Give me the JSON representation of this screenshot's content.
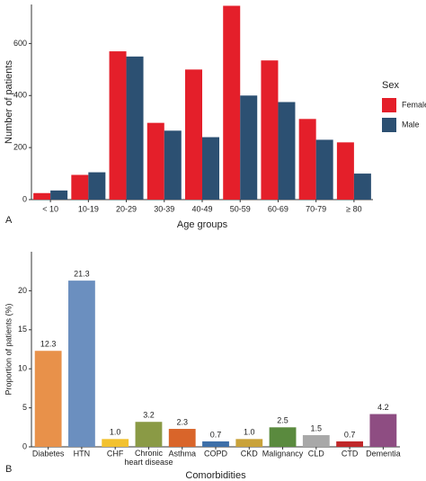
{
  "chart_data": [
    {
      "type": "grouped-bar",
      "panel_label": "A",
      "y_label": "Number of patients",
      "x_label": "Age groups",
      "categories": [
        "< 10",
        "10-19",
        "20-29",
        "30-39",
        "40-49",
        "50-59",
        "60-69",
        "70-79",
        "≥ 80"
      ],
      "series": [
        {
          "name": "Females",
          "color": "#e41f2a",
          "values": [
            25,
            95,
            570,
            295,
            500,
            745,
            535,
            310,
            220
          ]
        },
        {
          "name": "Male",
          "color": "#2c5072",
          "values": [
            35,
            105,
            550,
            265,
            240,
            400,
            375,
            230,
            100
          ]
        }
      ],
      "legend_title": "Sex",
      "legend": "right",
      "ylim": [
        0,
        750
      ],
      "yticks": [
        0,
        200,
        400,
        600
      ]
    },
    {
      "type": "bar",
      "panel_label": "B",
      "y_label": "Proportion of patients (%)",
      "x_label": "Comorbidities",
      "categories": [
        "Diabetes",
        "HTN",
        "CHF",
        "Chronic heart disease",
        "Asthma",
        "COPD",
        "CKD",
        "Malignancy",
        "CLD",
        "CTD",
        "Dementia"
      ],
      "values": [
        12.3,
        21.3,
        1.0,
        3.2,
        2.3,
        0.7,
        1.0,
        2.5,
        1.5,
        0.7,
        4.2
      ],
      "value_labels": [
        "12.3",
        "21.3",
        "1.0",
        "3.2",
        "2.3",
        "0.7",
        "1.0",
        "2.5",
        "1.5",
        "0.7",
        "4.2"
      ],
      "colors": [
        "#e8914a",
        "#6b8fbf",
        "#f2c12e",
        "#8a9a45",
        "#d9652a",
        "#3d6fa8",
        "#c9a23a",
        "#5a8a3e",
        "#a8a8a8",
        "#c0282a",
        "#8e4d82"
      ],
      "ylim": [
        0,
        25
      ],
      "yticks": [
        0,
        5,
        10,
        15,
        20
      ]
    }
  ]
}
